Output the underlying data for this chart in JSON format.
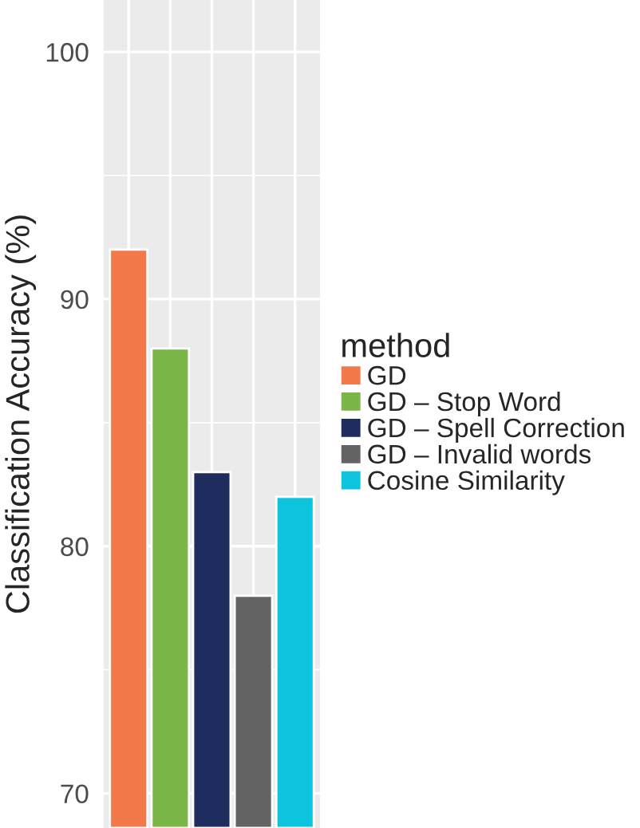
{
  "chart_data": {
    "type": "bar",
    "ylabel": "Classification Accuracy (%)",
    "legend_title": "method",
    "categories": [
      null,
      null,
      null,
      null,
      null
    ],
    "series": [
      {
        "name": "GD",
        "color": "#f4794a",
        "values": [
          92,
          null,
          null,
          null,
          null
        ]
      },
      {
        "name": "GD – Stop Word",
        "color": "#7ab648",
        "values": [
          null,
          88,
          null,
          null,
          null
        ]
      },
      {
        "name": "GD – Spell Correction",
        "color": "#1f2d5e",
        "values": [
          null,
          null,
          83,
          null,
          null
        ]
      },
      {
        "name": "GD – Invalid words",
        "color": "#636363",
        "values": [
          null,
          null,
          null,
          78,
          null
        ]
      },
      {
        "name": "Cosine Similarity",
        "color": "#0dc4de",
        "values": [
          null,
          null,
          null,
          null,
          82
        ]
      }
    ],
    "ylim": [
      68.6,
      102.1
    ],
    "yticks": [
      70,
      80,
      90,
      100
    ],
    "grid": true,
    "legend": "right",
    "tick_labels": "y"
  }
}
